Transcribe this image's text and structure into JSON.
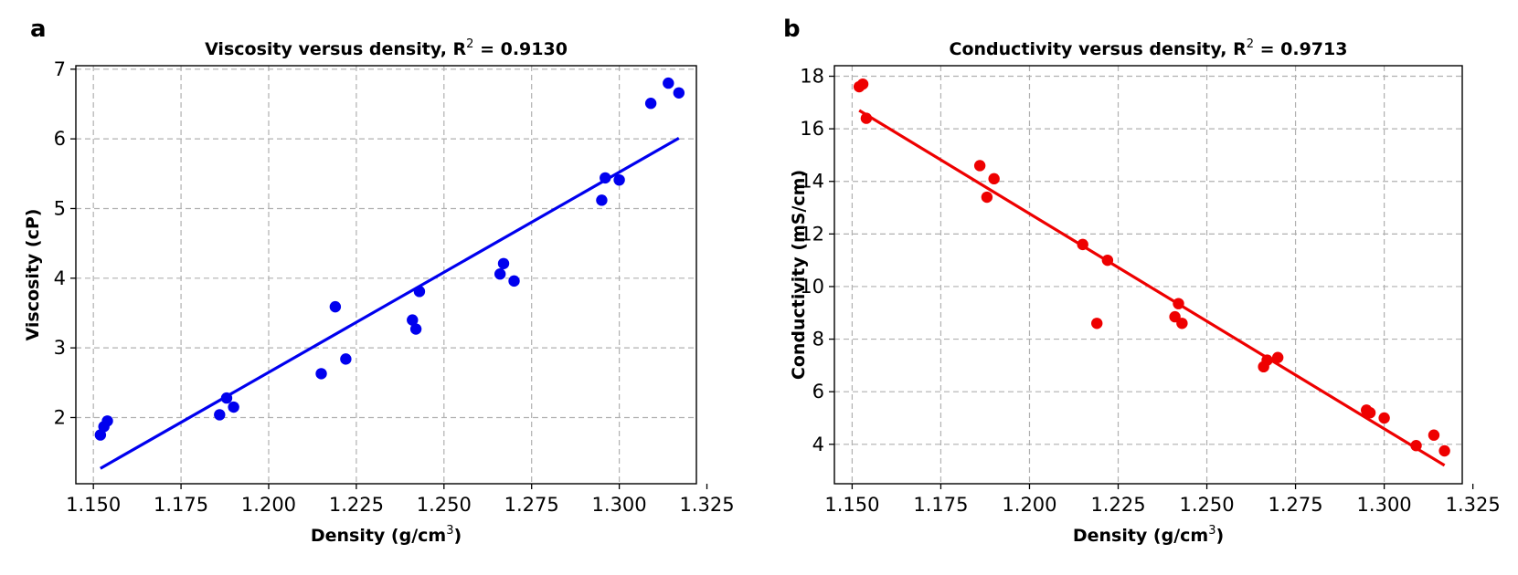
{
  "chart_data": [
    {
      "type": "scatter",
      "panel": "a",
      "title": "Viscosity versus density, R",
      "title_sup": "2",
      "title_suffix": " = 0.9130",
      "xlabel": "Density (g/cm",
      "xlabel_sup": "3",
      "xlabel_suffix": ")",
      "ylabel": "Viscosity (cP)",
      "xlim": [
        1.145,
        1.322
      ],
      "ylim": [
        1.05,
        7.05
      ],
      "xticks": [
        1.15,
        1.175,
        1.2,
        1.225,
        1.25,
        1.275,
        1.3,
        1.325
      ],
      "xtick_labels": [
        "1.150",
        "1.175",
        "1.200",
        "1.225",
        "1.250",
        "1.275",
        "1.300",
        "1.325"
      ],
      "yticks": [
        2,
        3,
        4,
        5,
        6,
        7
      ],
      "ytick_labels": [
        "2",
        "3",
        "4",
        "5",
        "6",
        "7"
      ],
      "grid": true,
      "color": "#0000ee",
      "x": [
        1.152,
        1.153,
        1.154,
        1.186,
        1.188,
        1.19,
        1.215,
        1.219,
        1.222,
        1.241,
        1.242,
        1.243,
        1.266,
        1.267,
        1.27,
        1.295,
        1.296,
        1.3,
        1.309,
        1.314,
        1.317
      ],
      "y": [
        1.75,
        1.87,
        1.95,
        2.04,
        2.28,
        2.15,
        2.63,
        3.59,
        2.84,
        3.4,
        3.27,
        3.81,
        4.06,
        4.21,
        3.96,
        5.12,
        5.44,
        5.41,
        6.51,
        6.8,
        6.66
      ],
      "fit_line": {
        "x": [
          1.152,
          1.317
        ],
        "y": [
          1.27,
          6.01
        ]
      }
    },
    {
      "type": "scatter",
      "panel": "b",
      "title": "Conductivity versus density, R",
      "title_sup": "2",
      "title_suffix": " = 0.9713",
      "xlabel": "Density (g/cm",
      "xlabel_sup": "3",
      "xlabel_suffix": ")",
      "ylabel": "Conductivity (mS/cm)",
      "xlim": [
        1.145,
        1.322
      ],
      "ylim": [
        2.5,
        18.4
      ],
      "xticks": [
        1.15,
        1.175,
        1.2,
        1.225,
        1.25,
        1.275,
        1.3,
        1.325
      ],
      "xtick_labels": [
        "1.150",
        "1.175",
        "1.200",
        "1.225",
        "1.250",
        "1.275",
        "1.300",
        "1.325"
      ],
      "yticks": [
        4,
        6,
        8,
        10,
        12,
        14,
        16,
        18
      ],
      "ytick_labels": [
        "4",
        "6",
        "8",
        "10",
        "12",
        "14",
        "16",
        "18"
      ],
      "grid": true,
      "color": "#ee0000",
      "x": [
        1.152,
        1.153,
        1.154,
        1.186,
        1.188,
        1.19,
        1.215,
        1.219,
        1.222,
        1.241,
        1.242,
        1.243,
        1.266,
        1.267,
        1.27,
        1.295,
        1.296,
        1.3,
        1.309,
        1.314,
        1.317
      ],
      "y": [
        17.6,
        17.7,
        16.4,
        14.6,
        13.4,
        14.1,
        11.6,
        8.6,
        11.0,
        8.85,
        9.35,
        8.6,
        6.95,
        7.2,
        7.3,
        5.3,
        5.2,
        5.0,
        3.95,
        4.35,
        3.75
      ],
      "fit_line": {
        "x": [
          1.152,
          1.317
        ],
        "y": [
          16.7,
          3.2
        ]
      }
    }
  ]
}
